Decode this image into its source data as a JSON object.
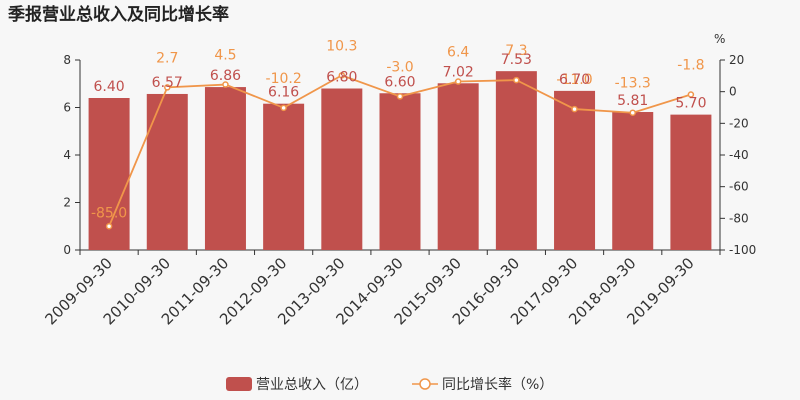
{
  "chart_data": {
    "type": "bar",
    "title": "季报营业总收入及同比增长率",
    "categories": [
      "2009-09-30",
      "2010-09-30",
      "2011-09-30",
      "2012-09-30",
      "2013-09-30",
      "2014-09-30",
      "2015-09-30",
      "2016-09-30",
      "2017-09-30",
      "2018-09-30",
      "2019-09-30"
    ],
    "series": [
      {
        "name": "营业总收入（亿）",
        "type": "bar",
        "axis": "left",
        "color": "#c0504d",
        "values": [
          6.4,
          6.57,
          6.86,
          6.16,
          6.8,
          6.6,
          7.02,
          7.53,
          6.7,
          5.81,
          5.7
        ],
        "labels": [
          "6.40",
          "6.57",
          "6.86",
          "6.16",
          "6.80",
          "6.60",
          "7.02",
          "7.53",
          "6.70",
          "5.81",
          "5.70"
        ]
      },
      {
        "name": "同比增长率（%）",
        "type": "line",
        "axis": "right",
        "color": "#f0964a",
        "values": [
          -85.0,
          2.7,
          4.5,
          -10.2,
          10.3,
          -3.0,
          6.4,
          7.3,
          -11.0,
          -13.3,
          -1.8
        ],
        "labels": [
          "-85.0",
          "2.7",
          "4.5",
          "-10.2",
          "10.3",
          "-3.0",
          "6.4",
          "7.3",
          "-11.0",
          "-13.3",
          "-1.8"
        ]
      }
    ],
    "y_left": {
      "min": 0,
      "max": 8,
      "ticks": [
        0,
        2,
        4,
        6,
        8
      ]
    },
    "y_right": {
      "min": -100,
      "max": 20,
      "unit": "%",
      "ticks": [
        20,
        0,
        -20,
        -40,
        -60,
        -80,
        -100
      ]
    },
    "legend_position": "bottom"
  }
}
